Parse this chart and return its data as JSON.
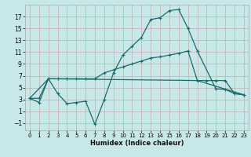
{
  "xlabel": "Humidex (Indice chaleur)",
  "background_color": "#c8e8e8",
  "grid_color": "#c0b0b0",
  "line_color": "#1a6b6b",
  "x_ticks": [
    0,
    1,
    2,
    3,
    4,
    5,
    6,
    7,
    8,
    9,
    10,
    11,
    12,
    13,
    14,
    15,
    16,
    17,
    18,
    19,
    20,
    21,
    22,
    23
  ],
  "y_ticks": [
    -1,
    1,
    3,
    5,
    7,
    9,
    11,
    13,
    15,
    17
  ],
  "xlim": [
    -0.5,
    23.5
  ],
  "ylim": [
    -2.2,
    19.0
  ],
  "curve1_x": [
    0,
    1,
    2,
    3,
    4,
    5,
    6,
    7,
    8,
    9,
    10,
    11,
    12,
    13,
    14,
    15,
    16,
    17,
    18,
    20,
    21,
    22,
    23
  ],
  "curve1_y": [
    3.2,
    2.5,
    6.5,
    4.0,
    2.3,
    2.5,
    2.7,
    -1.2,
    3.0,
    7.5,
    10.5,
    12.0,
    13.5,
    16.5,
    16.8,
    18.0,
    18.2,
    15.0,
    11.2,
    4.8,
    4.7,
    4.0,
    3.8
  ],
  "curve2_x": [
    0,
    1,
    2,
    3,
    4,
    5,
    6,
    7,
    8,
    9,
    10,
    11,
    12,
    13,
    14,
    15,
    16,
    17,
    18,
    19,
    20,
    21,
    22,
    23
  ],
  "curve2_y": [
    3.2,
    3.2,
    6.5,
    6.5,
    6.5,
    6.5,
    6.5,
    6.5,
    7.5,
    8.0,
    8.5,
    9.0,
    9.5,
    10.0,
    10.2,
    10.5,
    10.8,
    11.2,
    6.2,
    6.2,
    6.2,
    6.2,
    4.0,
    3.8
  ],
  "curve3_x": [
    0,
    2,
    18,
    23
  ],
  "curve3_y": [
    3.2,
    6.5,
    6.2,
    3.8
  ]
}
